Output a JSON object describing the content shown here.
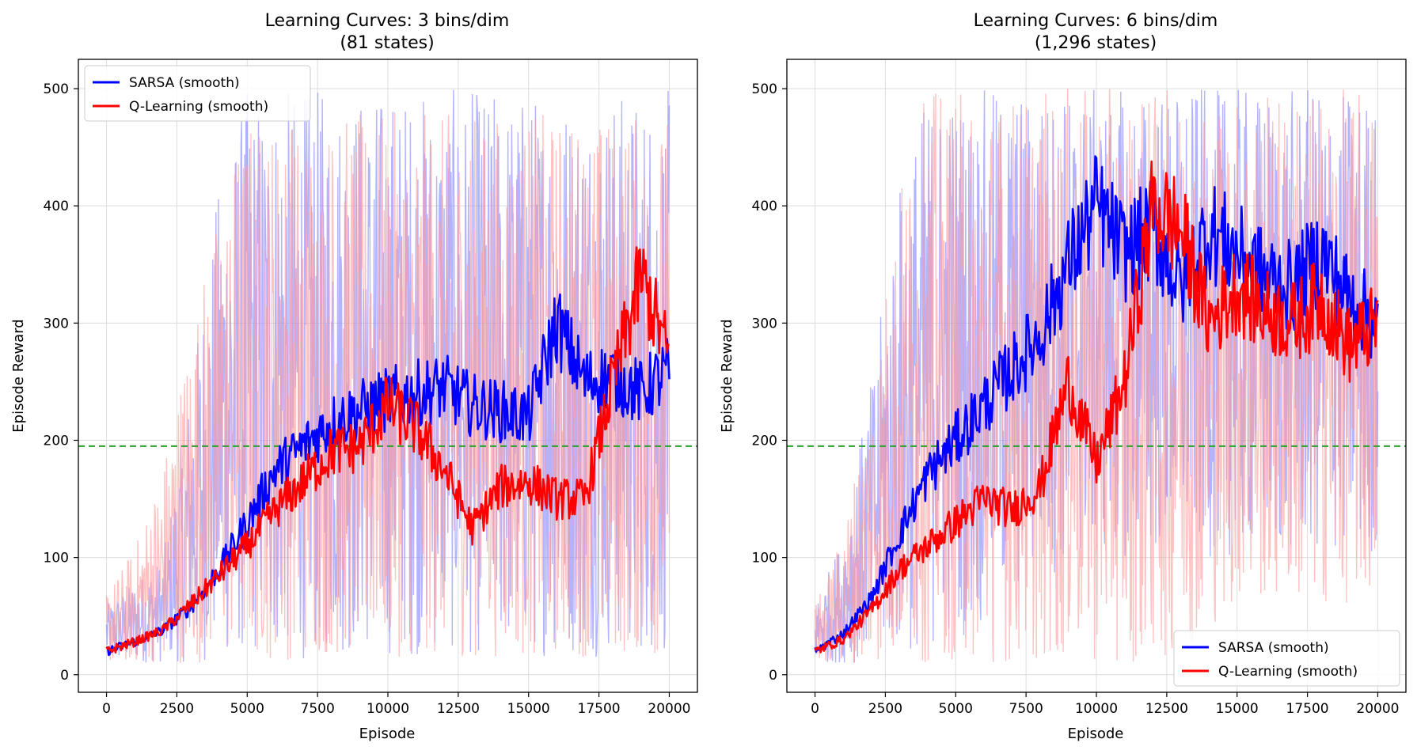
{
  "chart_data": [
    {
      "type": "line",
      "title": "Learning Curves: 3 bins/dim",
      "subtitle": "(81 states)",
      "xlabel": "Episode",
      "ylabel": "Episode Reward",
      "xlim": [
        -1000,
        21000
      ],
      "ylim": [
        -15,
        525
      ],
      "xticks": [
        0,
        2500,
        5000,
        7500,
        10000,
        12500,
        15000,
        17500,
        20000
      ],
      "yticks": [
        0,
        100,
        200,
        300,
        400,
        500
      ],
      "grid": true,
      "legend_position": "top-left",
      "threshold": {
        "y": 195,
        "color": "#2ca02c",
        "style": "dashed"
      },
      "series": [
        {
          "name": "SARSA (smooth)",
          "color": "#0000ff",
          "raw_color": "#8080ff",
          "x": [
            0,
            1000,
            2000,
            3000,
            4000,
            5000,
            6000,
            7000,
            8000,
            9000,
            10000,
            11000,
            12000,
            13000,
            14000,
            15000,
            16000,
            17000,
            18000,
            19000,
            20000
          ],
          "smooth": [
            20,
            28,
            38,
            58,
            90,
            130,
            175,
            195,
            215,
            225,
            235,
            240,
            245,
            230,
            225,
            220,
            300,
            250,
            255,
            240,
            260
          ],
          "raw_low": [
            10,
            10,
            10,
            10,
            10,
            12,
            12,
            12,
            15,
            15,
            15,
            15,
            15,
            15,
            15,
            15,
            15,
            15,
            15,
            15,
            15
          ],
          "raw_high": [
            60,
            80,
            100,
            250,
            420,
            500,
            500,
            500,
            500,
            500,
            500,
            500,
            500,
            500,
            500,
            500,
            500,
            500,
            500,
            500,
            500
          ]
        },
        {
          "name": "Q-Learning (smooth)",
          "color": "#ff0000",
          "raw_color": "#ff9a9a",
          "x": [
            0,
            1000,
            2000,
            3000,
            4000,
            5000,
            6000,
            7000,
            8000,
            9000,
            10000,
            11000,
            12000,
            13000,
            14000,
            15000,
            16000,
            17000,
            18000,
            19000,
            20000
          ],
          "smooth": [
            20,
            28,
            38,
            60,
            85,
            110,
            140,
            165,
            190,
            195,
            230,
            210,
            175,
            125,
            160,
            165,
            150,
            150,
            250,
            340,
            270
          ],
          "raw_low": [
            10,
            10,
            10,
            10,
            10,
            12,
            12,
            12,
            15,
            15,
            15,
            15,
            15,
            15,
            15,
            15,
            15,
            15,
            15,
            15,
            15
          ],
          "raw_high": [
            70,
            110,
            180,
            300,
            400,
            480,
            480,
            480,
            480,
            480,
            480,
            480,
            480,
            480,
            480,
            480,
            480,
            480,
            480,
            480,
            480
          ]
        }
      ]
    },
    {
      "type": "line",
      "title": "Learning Curves: 6 bins/dim",
      "subtitle": "(1,296 states)",
      "xlabel": "Episode",
      "ylabel": "Episode Reward",
      "xlim": [
        -1000,
        21000
      ],
      "ylim": [
        -15,
        525
      ],
      "xticks": [
        0,
        2500,
        5000,
        7500,
        10000,
        12500,
        15000,
        17500,
        20000
      ],
      "yticks": [
        0,
        100,
        200,
        300,
        400,
        500
      ],
      "grid": true,
      "legend_position": "bottom-right",
      "threshold": {
        "y": 195,
        "color": "#2ca02c",
        "style": "dashed"
      },
      "series": [
        {
          "name": "SARSA (smooth)",
          "color": "#0000ff",
          "raw_color": "#8080ff",
          "x": [
            0,
            1000,
            2000,
            3000,
            4000,
            5000,
            6000,
            7000,
            8000,
            9000,
            10000,
            11000,
            12000,
            13000,
            14000,
            15000,
            16000,
            17000,
            18000,
            19000,
            20000
          ],
          "smooth": [
            20,
            35,
            65,
            120,
            170,
            200,
            230,
            260,
            290,
            350,
            400,
            360,
            380,
            330,
            380,
            360,
            340,
            330,
            360,
            320,
            300
          ],
          "raw_low": [
            10,
            10,
            10,
            15,
            20,
            30,
            40,
            60,
            80,
            90,
            100,
            100,
            100,
            100,
            100,
            100,
            100,
            100,
            100,
            100,
            100
          ],
          "raw_high": [
            60,
            120,
            250,
            420,
            500,
            500,
            500,
            500,
            500,
            500,
            500,
            500,
            500,
            500,
            500,
            500,
            500,
            500,
            500,
            500,
            500
          ]
        },
        {
          "name": "Q-Learning (smooth)",
          "color": "#ff0000",
          "raw_color": "#ff9a9a",
          "x": [
            0,
            1000,
            2000,
            3000,
            4000,
            5000,
            6000,
            7000,
            8000,
            9000,
            10000,
            11000,
            12000,
            13000,
            14000,
            15000,
            16000,
            17000,
            18000,
            19000,
            20000
          ],
          "smooth": [
            20,
            30,
            55,
            90,
            110,
            130,
            150,
            140,
            160,
            250,
            180,
            250,
            400,
            380,
            300,
            330,
            310,
            300,
            320,
            280,
            300
          ],
          "raw_low": [
            10,
            10,
            10,
            10,
            10,
            10,
            10,
            10,
            10,
            10,
            10,
            10,
            10,
            20,
            40,
            60,
            60,
            60,
            60,
            60,
            60
          ],
          "raw_high": [
            60,
            120,
            250,
            420,
            500,
            500,
            500,
            500,
            500,
            500,
            500,
            500,
            500,
            500,
            500,
            500,
            500,
            500,
            500,
            500,
            500
          ]
        }
      ]
    }
  ]
}
